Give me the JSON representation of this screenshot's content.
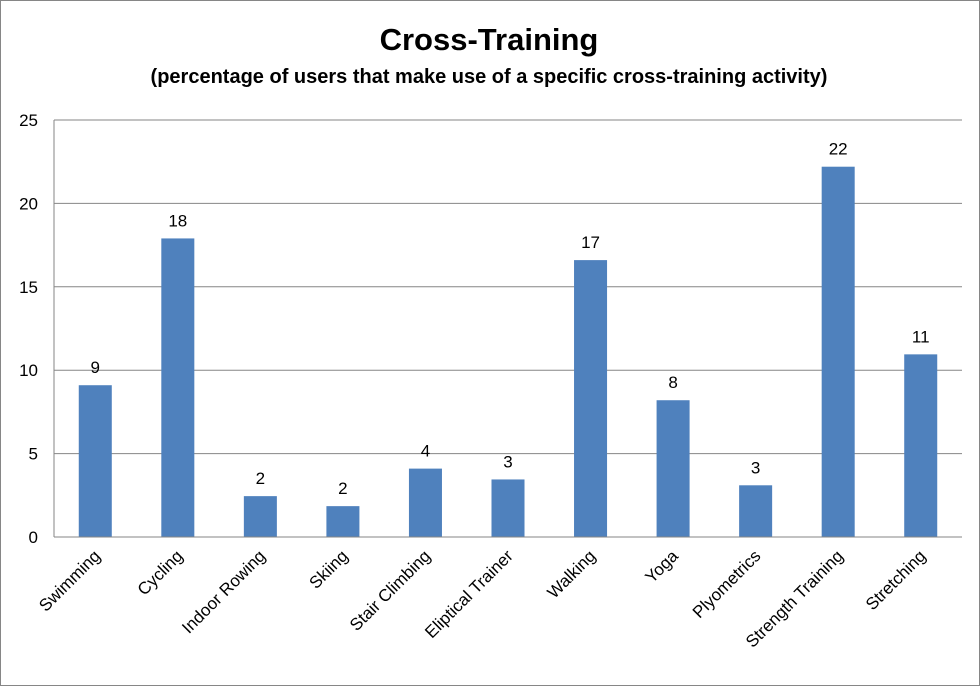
{
  "chart_data": {
    "type": "bar",
    "title": "Cross-Training",
    "subtitle": "(percentage of users that make use of a specific cross-training activity)",
    "categories": [
      "Swimming",
      "Cycling",
      "Indoor Rowing",
      "Skiing",
      "Stair Climbing",
      "Eliptical Trainer",
      "Walking",
      "Yoga",
      "Plyometrics",
      "Strength Training",
      "Stretching"
    ],
    "values": [
      9.1,
      17.9,
      2.45,
      1.85,
      4.1,
      3.45,
      16.6,
      8.2,
      3.1,
      22.2,
      10.95
    ],
    "data_labels": [
      "9",
      "18",
      "2",
      "2",
      "4",
      "3",
      "17",
      "8",
      "3",
      "22",
      "11"
    ],
    "xlabel": "",
    "ylabel": "",
    "ylim": [
      0,
      25
    ],
    "yticks": [
      "0",
      "5",
      "10",
      "15",
      "20",
      "25"
    ],
    "grid": true,
    "legend": "none",
    "bar_color": "#4f81bd",
    "grid_color": "#868686"
  }
}
